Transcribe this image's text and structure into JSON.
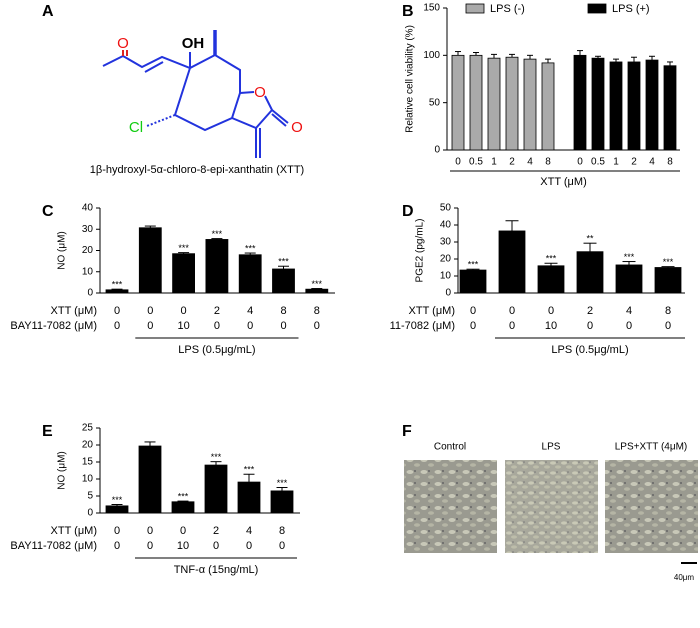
{
  "panels": [
    "A",
    "B",
    "C",
    "D",
    "E",
    "F"
  ],
  "structure": {
    "caption": "1β-hydroxyl-5α-chloro-8-epi-xanthatin (XTT)",
    "atoms": [
      "O",
      "OH",
      "Cl",
      "O",
      "O"
    ]
  },
  "chart_data": [
    {
      "type": "bar",
      "ylabel": "Relative cell viability (%)",
      "xlabel": "XTT (μM)",
      "categories": [
        "0",
        "0.5",
        "1",
        "2",
        "4",
        "8"
      ],
      "series": [
        {
          "name": "LPS (-)",
          "color": "#aaaaaa",
          "values": [
            100,
            100,
            97,
            98,
            96,
            92
          ],
          "errors": [
            4,
            3,
            4,
            3,
            4,
            4
          ]
        },
        {
          "name": "LPS (+)",
          "color": "#000000",
          "values": [
            100,
            97,
            93,
            93,
            95,
            89
          ],
          "errors": [
            5,
            2,
            3,
            5,
            4,
            4
          ]
        }
      ],
      "ylim": [
        0,
        150
      ],
      "yticks": [
        0,
        50,
        100,
        150
      ],
      "legend": "top"
    },
    {
      "type": "bar",
      "ylabel": "NO (μM)",
      "color": "#000000",
      "values": [
        1.5,
        30.7,
        18.5,
        25.2,
        18,
        11.3,
        1.8
      ],
      "errors": [
        0.3,
        0.8,
        0.5,
        0.4,
        0.8,
        1.3,
        0.3
      ],
      "annotations": [
        "***",
        null,
        "***",
        "***",
        "***",
        "***",
        "***"
      ],
      "ylim": [
        0,
        40
      ],
      "yticks": [
        0,
        10,
        20,
        30,
        40
      ],
      "rows": [
        {
          "label": "XTT (μM)",
          "values": [
            0,
            0,
            0,
            2,
            4,
            8,
            8
          ]
        },
        {
          "label": "BAY11-7082 (μM)",
          "values": [
            0,
            0,
            10,
            0,
            0,
            0,
            0
          ]
        }
      ],
      "group": "LPS (0.5μg/mL)"
    },
    {
      "type": "bar",
      "ylabel": "PGE2 (pg/mL)",
      "color": "#000000",
      "values": [
        13.5,
        36.5,
        16,
        24.3,
        16.5,
        15
      ],
      "errors": [
        0.5,
        6,
        1.5,
        5,
        2,
        0.5
      ],
      "annotations": [
        "***",
        null,
        "***",
        "**",
        "***",
        "***"
      ],
      "ylim": [
        0,
        50
      ],
      "yticks": [
        0,
        10,
        20,
        30,
        40,
        50
      ],
      "rows": [
        {
          "label": "XTT (μM)",
          "values": [
            0,
            0,
            0,
            2,
            4,
            8
          ]
        },
        {
          "label": "11-7082 (μM)",
          "values": [
            0,
            0,
            10,
            0,
            0,
            0
          ]
        }
      ],
      "group": "LPS (0.5μg/mL)"
    },
    {
      "type": "bar",
      "ylabel": "NO (μM)",
      "color": "#000000",
      "values": [
        2.1,
        19.7,
        3.3,
        14.1,
        9.1,
        6.5
      ],
      "errors": [
        0.4,
        1.2,
        0.2,
        1,
        2.3,
        1
      ],
      "annotations": [
        "***",
        null,
        "***",
        "***",
        "***",
        "***"
      ],
      "ylim": [
        0,
        25
      ],
      "yticks": [
        0,
        5,
        10,
        15,
        20,
        25
      ],
      "rows": [
        {
          "label": "XTT (μM)",
          "values": [
            0,
            0,
            0,
            2,
            4,
            8
          ]
        },
        {
          "label": "BAY11-7082 (μM)",
          "values": [
            0,
            0,
            10,
            0,
            0,
            0
          ]
        }
      ],
      "group": "TNF-α  (15ng/mL)"
    }
  ],
  "images": {
    "labels": [
      "Control",
      "LPS",
      "LPS+XTT (4μM)"
    ],
    "scale": "40μm"
  }
}
